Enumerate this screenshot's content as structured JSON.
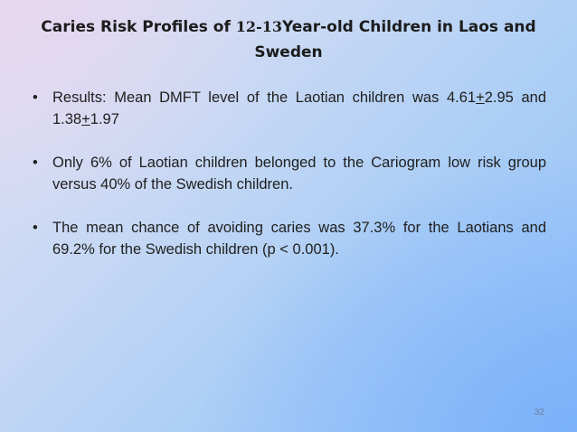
{
  "slide": {
    "title_part1": "Caries Risk Profiles of ",
    "title_age": "12-13",
    "title_part2": "Year-old Children in Laos and Sweden",
    "bullets": [
      {
        "prefix": "Results: Mean DMFT level of the Laotian children was 4.61",
        "pm1": "+",
        "mid": "2.95 and 1.38",
        "pm2": "+",
        "suffix": "1.97"
      },
      {
        "text": "Only 6% of Laotian children belonged to the Cariogram low risk group versus 40% of the Swedish children."
      },
      {
        "text": "The mean chance of avoiding caries was 37.3% for the Laotians and 69.2% for the Swedish children (p < 0.001)."
      }
    ],
    "page_number": "32"
  }
}
